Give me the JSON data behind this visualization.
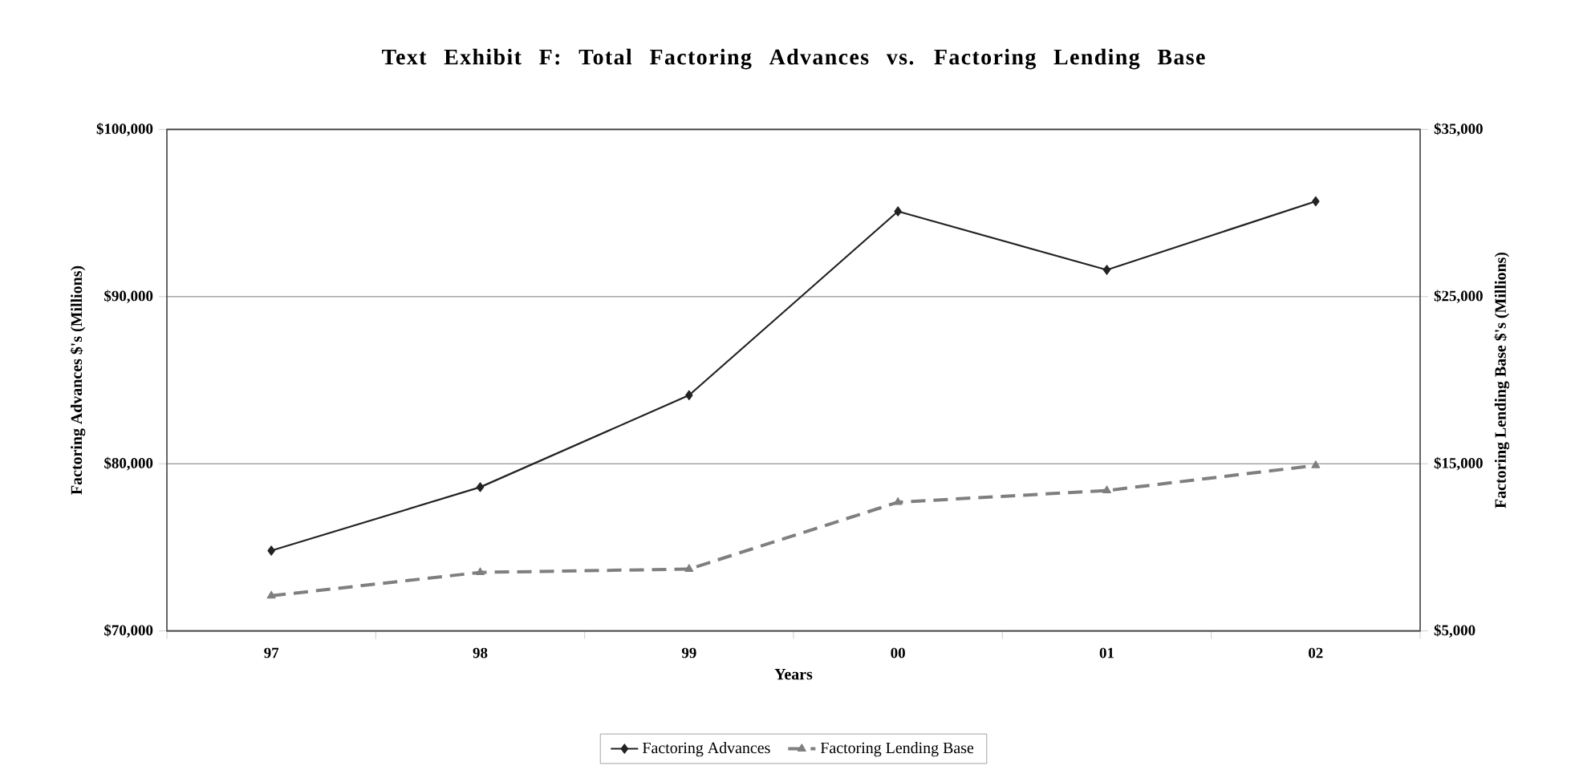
{
  "chart_data": {
    "type": "line",
    "title": "Text Exhibit F: Total Factoring Advances vs. Factoring Lending Base",
    "xlabel": "Years",
    "ylabel": "Factoring Advances $'s (Millions)",
    "y2label": "Factoring Lending Base $'s (Millions)",
    "categories": [
      "97",
      "98",
      "99",
      "00",
      "01",
      "02"
    ],
    "series": [
      {
        "name": "Factoring Advances",
        "color": "#222222",
        "marker": "diamond",
        "line_style": "solid",
        "values": [
          74800,
          78600,
          84100,
          95100,
          91600,
          95700
        ]
      },
      {
        "name": "Factoring Lending Base",
        "color": "#7f7f7f",
        "marker": "triangle",
        "line_style": "dashed",
        "axis": "y2",
        "values": [
          7100,
          8500,
          8700,
          12700,
          13400,
          14900
        ]
      }
    ],
    "ylim": [
      70000,
      100000
    ],
    "yticks": [
      {
        "value": 70000,
        "label": "$70,000"
      },
      {
        "value": 80000,
        "label": "$80,000"
      },
      {
        "value": 90000,
        "label": "$90,000"
      },
      {
        "value": 100000,
        "label": "$100,000"
      }
    ],
    "y2lim": [
      5000,
      35000
    ],
    "y2ticks": [
      {
        "value": 5000,
        "label": "$5,000"
      },
      {
        "value": 15000,
        "label": "$15,000"
      },
      {
        "value": 25000,
        "label": "$25,000"
      },
      {
        "value": 35000,
        "label": "$35,000"
      }
    ],
    "grid": "y",
    "legend": "bottom"
  }
}
